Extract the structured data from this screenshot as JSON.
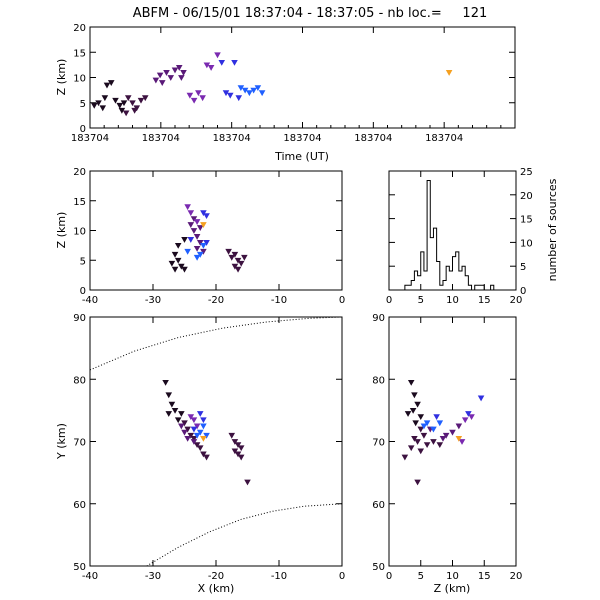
{
  "title": "ABFM - 06/15/01 18:37:04 - 18:37:05 - nb loc.=     121",
  "colors": {
    "early": "#1a0a1e",
    "mid1": "#3d1240",
    "mid2": "#5a1a78",
    "mid3": "#7a2ab0",
    "late1": "#3030e0",
    "late2": "#2060ff",
    "last": "#f5a020"
  },
  "chart_data": [
    {
      "id": "time-height",
      "type": "scatter",
      "xlabel": "Time (UT)",
      "ylabel": "Z (km)",
      "ylim": [
        0,
        20
      ],
      "yticks": [
        0,
        5,
        10,
        15,
        20
      ],
      "xtick_labels": [
        "183704",
        "183704",
        "183704",
        "183704",
        "183704",
        "183704"
      ],
      "points": [
        {
          "t": 0.01,
          "z": 4.5,
          "c": "early"
        },
        {
          "t": 0.02,
          "z": 5.0,
          "c": "early"
        },
        {
          "t": 0.03,
          "z": 4.0,
          "c": "early"
        },
        {
          "t": 0.035,
          "z": 6.0,
          "c": "early"
        },
        {
          "t": 0.04,
          "z": 8.5,
          "c": "early"
        },
        {
          "t": 0.05,
          "z": 9.0,
          "c": "early"
        },
        {
          "t": 0.06,
          "z": 5.5,
          "c": "early"
        },
        {
          "t": 0.07,
          "z": 4.5,
          "c": "early"
        },
        {
          "t": 0.075,
          "z": 3.5,
          "c": "early"
        },
        {
          "t": 0.08,
          "z": 5.0,
          "c": "early"
        },
        {
          "t": 0.09,
          "z": 6.0,
          "c": "mid1"
        },
        {
          "t": 0.1,
          "z": 5.0,
          "c": "mid1"
        },
        {
          "t": 0.11,
          "z": 4.0,
          "c": "mid1"
        },
        {
          "t": 0.12,
          "z": 5.5,
          "c": "mid1"
        },
        {
          "t": 0.13,
          "z": 6.0,
          "c": "mid1"
        },
        {
          "t": 0.085,
          "z": 3.0,
          "c": "mid1"
        },
        {
          "t": 0.105,
          "z": 3.5,
          "c": "mid1"
        },
        {
          "t": 0.155,
          "z": 9.5,
          "c": "mid2"
        },
        {
          "t": 0.165,
          "z": 10.5,
          "c": "mid2"
        },
        {
          "t": 0.17,
          "z": 9.0,
          "c": "mid2"
        },
        {
          "t": 0.18,
          "z": 11.0,
          "c": "mid2"
        },
        {
          "t": 0.19,
          "z": 10.0,
          "c": "mid2"
        },
        {
          "t": 0.2,
          "z": 11.5,
          "c": "mid2"
        },
        {
          "t": 0.21,
          "z": 12.0,
          "c": "mid2"
        },
        {
          "t": 0.22,
          "z": 11.0,
          "c": "mid2"
        },
        {
          "t": 0.215,
          "z": 10.0,
          "c": "mid2"
        },
        {
          "t": 0.235,
          "z": 6.5,
          "c": "mid3"
        },
        {
          "t": 0.245,
          "z": 5.5,
          "c": "mid3"
        },
        {
          "t": 0.255,
          "z": 7.0,
          "c": "mid3"
        },
        {
          "t": 0.265,
          "z": 6.0,
          "c": "mid3"
        },
        {
          "t": 0.275,
          "z": 12.5,
          "c": "mid3"
        },
        {
          "t": 0.285,
          "z": 12.0,
          "c": "mid3"
        },
        {
          "t": 0.3,
          "z": 14.5,
          "c": "mid3"
        },
        {
          "t": 0.31,
          "z": 13.0,
          "c": "late1"
        },
        {
          "t": 0.32,
          "z": 7.0,
          "c": "late1"
        },
        {
          "t": 0.33,
          "z": 6.5,
          "c": "late1"
        },
        {
          "t": 0.34,
          "z": 13.0,
          "c": "late1"
        },
        {
          "t": 0.35,
          "z": 6.0,
          "c": "late1"
        },
        {
          "t": 0.355,
          "z": 8.0,
          "c": "late2"
        },
        {
          "t": 0.365,
          "z": 7.5,
          "c": "late2"
        },
        {
          "t": 0.375,
          "z": 7.0,
          "c": "late2"
        },
        {
          "t": 0.385,
          "z": 7.5,
          "c": "late2"
        },
        {
          "t": 0.395,
          "z": 8.0,
          "c": "late2"
        },
        {
          "t": 0.405,
          "z": 7.0,
          "c": "late2"
        },
        {
          "t": 0.845,
          "z": 11.0,
          "c": "last"
        }
      ]
    },
    {
      "id": "x-z",
      "type": "scatter",
      "ylabel": "Z (km)",
      "xlim": [
        -40,
        0
      ],
      "ylim": [
        0,
        20
      ],
      "xticks": [
        -40,
        -30,
        -20,
        -10,
        0
      ],
      "yticks": [
        0,
        5,
        10,
        15,
        20
      ],
      "points": [
        {
          "x": -27.0,
          "z": 4.5,
          "c": "early"
        },
        {
          "x": -26.5,
          "z": 3.5,
          "c": "early"
        },
        {
          "x": -26.0,
          "z": 5.0,
          "c": "early"
        },
        {
          "x": -25.5,
          "z": 4.0,
          "c": "early"
        },
        {
          "x": -25.0,
          "z": 3.5,
          "c": "early"
        },
        {
          "x": -26.0,
          "z": 7.5,
          "c": "early"
        },
        {
          "x": -25.0,
          "z": 8.5,
          "c": "early"
        },
        {
          "x": -26.5,
          "z": 6.0,
          "c": "early"
        },
        {
          "x": -18.0,
          "z": 6.5,
          "c": "mid1"
        },
        {
          "x": -17.5,
          "z": 5.5,
          "c": "mid1"
        },
        {
          "x": -17.0,
          "z": 6.0,
          "c": "mid1"
        },
        {
          "x": -16.5,
          "z": 5.0,
          "c": "mid1"
        },
        {
          "x": -16.0,
          "z": 4.5,
          "c": "mid1"
        },
        {
          "x": -17.0,
          "z": 4.0,
          "c": "mid1"
        },
        {
          "x": -15.5,
          "z": 5.5,
          "c": "mid1"
        },
        {
          "x": -16.5,
          "z": 3.5,
          "c": "mid1"
        },
        {
          "x": -24.0,
          "z": 11.0,
          "c": "mid2"
        },
        {
          "x": -23.5,
          "z": 10.0,
          "c": "mid2"
        },
        {
          "x": -23.0,
          "z": 9.0,
          "c": "mid2"
        },
        {
          "x": -22.5,
          "z": 8.0,
          "c": "mid2"
        },
        {
          "x": -23.0,
          "z": 7.0,
          "c": "mid2"
        },
        {
          "x": -22.0,
          "z": 6.5,
          "c": "mid2"
        },
        {
          "x": -23.5,
          "z": 12.0,
          "c": "mid2"
        },
        {
          "x": -22.5,
          "z": 10.5,
          "c": "mid2"
        },
        {
          "x": -24.5,
          "z": 14.0,
          "c": "mid3"
        },
        {
          "x": -24.0,
          "z": 13.0,
          "c": "mid3"
        },
        {
          "x": -23.0,
          "z": 11.5,
          "c": "mid3"
        },
        {
          "x": -22.0,
          "z": 13.0,
          "c": "late1"
        },
        {
          "x": -21.5,
          "z": 12.5,
          "c": "late1"
        },
        {
          "x": -24.0,
          "z": 8.5,
          "c": "late1"
        },
        {
          "x": -21.5,
          "z": 8.0,
          "c": "late1"
        },
        {
          "x": -24.5,
          "z": 6.5,
          "c": "late2"
        },
        {
          "x": -23.0,
          "z": 5.5,
          "c": "late2"
        },
        {
          "x": -22.5,
          "z": 6.0,
          "c": "late2"
        },
        {
          "x": -22.0,
          "z": 7.5,
          "c": "late2"
        },
        {
          "x": -22.0,
          "z": 11.0,
          "c": "last"
        }
      ]
    },
    {
      "id": "histogram",
      "type": "bar",
      "ylabel": "number of sources",
      "xlim": [
        0,
        20
      ],
      "ylim": [
        0,
        25
      ],
      "xticks": [
        0,
        5,
        10,
        15,
        20
      ],
      "yticks": [
        0,
        5,
        10,
        15,
        20,
        25
      ],
      "bin_width": 0.5,
      "bin_start": 2.5,
      "values": [
        1,
        1,
        2,
        4,
        3,
        8,
        4,
        23,
        11,
        13,
        6,
        1,
        2,
        5,
        4,
        7,
        8,
        4,
        5,
        3,
        1,
        0,
        1,
        1,
        1,
        0,
        0,
        1
      ]
    },
    {
      "id": "x-y",
      "type": "scatter",
      "xlabel": "X (km)",
      "ylabel": "Y (km)",
      "xlim": [
        -40,
        0
      ],
      "ylim": [
        50,
        90
      ],
      "xticks": [
        -40,
        -30,
        -20,
        -10,
        0
      ],
      "yticks": [
        50,
        60,
        70,
        80,
        90
      ],
      "points": [
        {
          "x": -28.0,
          "y": 79.5,
          "c": "early"
        },
        {
          "x": -27.5,
          "y": 77.5,
          "c": "early"
        },
        {
          "x": -27.0,
          "y": 76.0,
          "c": "early"
        },
        {
          "x": -27.5,
          "y": 74.5,
          "c": "early"
        },
        {
          "x": -26.5,
          "y": 75.0,
          "c": "early"
        },
        {
          "x": -26.0,
          "y": 73.5,
          "c": "early"
        },
        {
          "x": -25.5,
          "y": 74.5,
          "c": "early"
        },
        {
          "x": -25.0,
          "y": 73.0,
          "c": "mid1"
        },
        {
          "x": -24.5,
          "y": 72.0,
          "c": "mid1"
        },
        {
          "x": -24.0,
          "y": 71.0,
          "c": "mid1"
        },
        {
          "x": -23.5,
          "y": 70.5,
          "c": "mid1"
        },
        {
          "x": -23.0,
          "y": 69.5,
          "c": "mid1"
        },
        {
          "x": -22.5,
          "y": 69.0,
          "c": "mid1"
        },
        {
          "x": -22.0,
          "y": 68.0,
          "c": "mid1"
        },
        {
          "x": -21.5,
          "y": 67.5,
          "c": "mid1"
        },
        {
          "x": -17.5,
          "y": 71.0,
          "c": "mid1"
        },
        {
          "x": -17.0,
          "y": 70.0,
          "c": "mid1"
        },
        {
          "x": -16.5,
          "y": 69.5,
          "c": "mid1"
        },
        {
          "x": -16.0,
          "y": 69.0,
          "c": "mid1"
        },
        {
          "x": -16.5,
          "y": 68.0,
          "c": "mid1"
        },
        {
          "x": -16.0,
          "y": 67.5,
          "c": "mid1"
        },
        {
          "x": -17.0,
          "y": 68.5,
          "c": "mid1"
        },
        {
          "x": -15.0,
          "y": 63.5,
          "c": "mid1"
        },
        {
          "x": -25.5,
          "y": 72.5,
          "c": "mid2"
        },
        {
          "x": -25.0,
          "y": 71.5,
          "c": "mid2"
        },
        {
          "x": -24.5,
          "y": 70.5,
          "c": "mid2"
        },
        {
          "x": -23.5,
          "y": 70.0,
          "c": "mid2"
        },
        {
          "x": -24.0,
          "y": 74.0,
          "c": "mid3"
        },
        {
          "x": -23.5,
          "y": 73.5,
          "c": "mid3"
        },
        {
          "x": -23.0,
          "y": 72.5,
          "c": "mid3"
        },
        {
          "x": -22.5,
          "y": 74.5,
          "c": "late1"
        },
        {
          "x": -22.0,
          "y": 73.5,
          "c": "late1"
        },
        {
          "x": -23.5,
          "y": 72.0,
          "c": "late1"
        },
        {
          "x": -22.5,
          "y": 71.5,
          "c": "late2"
        },
        {
          "x": -22.0,
          "y": 72.5,
          "c": "late2"
        },
        {
          "x": -21.5,
          "y": 71.0,
          "c": "late2"
        },
        {
          "x": -23.0,
          "y": 71.0,
          "c": "late2"
        },
        {
          "x": -22.0,
          "y": 70.5,
          "c": "last"
        }
      ],
      "arcs": [
        {
          "points": [
            [
              -40,
              81.5
            ],
            [
              -33,
              84.5
            ],
            [
              -26,
              86.7
            ],
            [
              -19,
              88.2
            ],
            [
              -12,
              89.2
            ],
            [
              -5,
              89.8
            ],
            [
              0,
              90
            ]
          ]
        },
        {
          "points": [
            [
              -31,
              50
            ],
            [
              -26,
              53
            ],
            [
              -21,
              55.5
            ],
            [
              -16,
              57.5
            ],
            [
              -11,
              58.8
            ],
            [
              -6,
              59.6
            ],
            [
              0,
              60
            ]
          ]
        }
      ]
    },
    {
      "id": "z-y",
      "type": "scatter",
      "xlabel": "Z (km)",
      "xlim": [
        0,
        20
      ],
      "ylim": [
        50,
        90
      ],
      "xticks": [
        0,
        5,
        10,
        15,
        20
      ],
      "yticks": [
        50,
        60,
        70,
        80,
        90
      ],
      "points": [
        {
          "z": 3.5,
          "y": 79.5,
          "c": "early"
        },
        {
          "z": 4.0,
          "y": 77.5,
          "c": "early"
        },
        {
          "z": 4.5,
          "y": 76.0,
          "c": "early"
        },
        {
          "z": 3.8,
          "y": 75.0,
          "c": "early"
        },
        {
          "z": 5.0,
          "y": 74.0,
          "c": "early"
        },
        {
          "z": 4.2,
          "y": 73.0,
          "c": "early"
        },
        {
          "z": 3.0,
          "y": 74.5,
          "c": "early"
        },
        {
          "z": 5.0,
          "y": 72.0,
          "c": "mid1"
        },
        {
          "z": 5.5,
          "y": 71.0,
          "c": "mid1"
        },
        {
          "z": 4.5,
          "y": 70.0,
          "c": "mid1"
        },
        {
          "z": 3.5,
          "y": 69.0,
          "c": "mid1"
        },
        {
          "z": 2.5,
          "y": 67.5,
          "c": "mid1"
        },
        {
          "z": 5.0,
          "y": 68.5,
          "c": "mid1"
        },
        {
          "z": 6.0,
          "y": 69.5,
          "c": "mid1"
        },
        {
          "z": 7.0,
          "y": 70.0,
          "c": "mid1"
        },
        {
          "z": 8.0,
          "y": 69.5,
          "c": "mid1"
        },
        {
          "z": 4.5,
          "y": 63.5,
          "c": "mid1"
        },
        {
          "z": 4.0,
          "y": 70.5,
          "c": "mid1"
        },
        {
          "z": 9.0,
          "y": 71.0,
          "c": "mid2"
        },
        {
          "z": 10.0,
          "y": 71.5,
          "c": "mid2"
        },
        {
          "z": 11.0,
          "y": 72.5,
          "c": "mid2"
        },
        {
          "z": 8.5,
          "y": 70.5,
          "c": "mid2"
        },
        {
          "z": 6.5,
          "y": 72.0,
          "c": "mid2"
        },
        {
          "z": 12.0,
          "y": 73.5,
          "c": "mid3"
        },
        {
          "z": 13.0,
          "y": 74.0,
          "c": "mid3"
        },
        {
          "z": 11.5,
          "y": 70.0,
          "c": "mid3"
        },
        {
          "z": 12.5,
          "y": 74.5,
          "c": "late1"
        },
        {
          "z": 14.5,
          "y": 77.0,
          "c": "late1"
        },
        {
          "z": 7.5,
          "y": 74.0,
          "c": "late1"
        },
        {
          "z": 6.0,
          "y": 73.0,
          "c": "late2"
        },
        {
          "z": 7.0,
          "y": 72.0,
          "c": "late2"
        },
        {
          "z": 5.5,
          "y": 72.5,
          "c": "late2"
        },
        {
          "z": 8.0,
          "y": 73.0,
          "c": "late2"
        },
        {
          "z": 11.0,
          "y": 70.5,
          "c": "last"
        }
      ]
    }
  ]
}
